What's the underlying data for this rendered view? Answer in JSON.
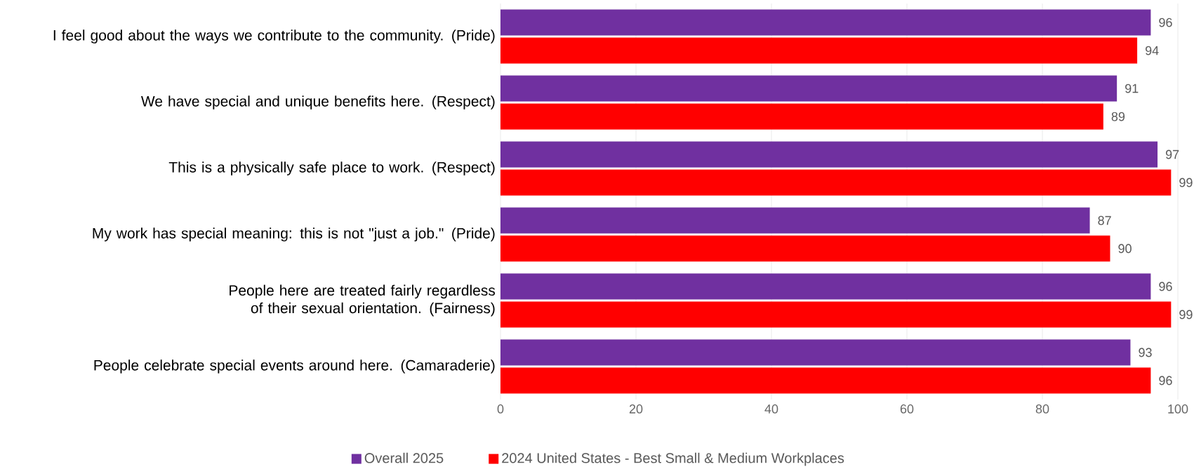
{
  "chart_data": {
    "type": "bar",
    "orientation": "horizontal",
    "categories": [
      "I feel good about the ways we contribute to the community. (Pride)",
      "We have special and unique benefits here. (Respect)",
      "This is a physically safe place to work. (Respect)",
      "My work has special meaning: this is not \"just a job.\" (Pride)",
      "People here are treated fairly regardless of their sexual orientation. (Fairness)",
      "People celebrate special events around here. (Camaraderie)"
    ],
    "series": [
      {
        "name": "Overall 2025",
        "color": "#7030a0",
        "values": [
          96,
          91,
          97,
          87,
          96,
          93
        ]
      },
      {
        "name": "2024 United States - Best Small & Medium Workplaces",
        "color": "#ff0000",
        "values": [
          94,
          89,
          99,
          90,
          99,
          96
        ]
      }
    ],
    "xlim": [
      0,
      100
    ],
    "xticks": [
      0,
      20,
      40,
      60,
      80,
      100
    ],
    "grid": "x",
    "legend": "bottom",
    "data_labels": true
  }
}
